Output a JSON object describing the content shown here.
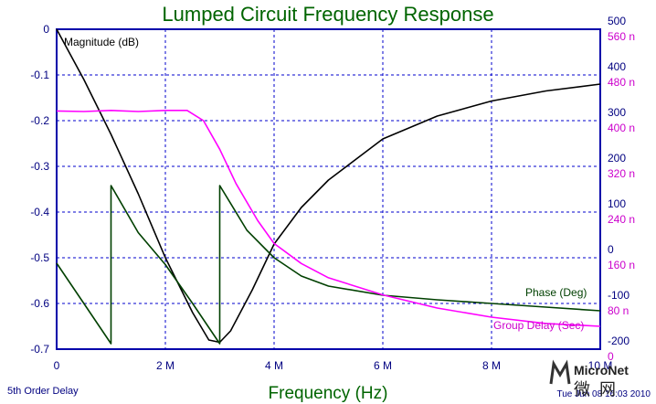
{
  "chart_data": {
    "type": "line",
    "title": "Lumped Circuit Frequency Response",
    "xlabel": "Frequency (Hz)",
    "footer_left": "5th Order Delay",
    "footer_right": "Tue Jun 08 16:03 2010",
    "watermark": {
      "brand": "MicroNet",
      "glyph": "微网"
    },
    "x_ticks": [
      "0",
      "2 M",
      "4 M",
      "6 M",
      "8 M",
      "10 M"
    ],
    "x_range": [
      0,
      10
    ],
    "left_axis": {
      "range": [
        -0.7,
        0
      ],
      "ticks": [
        "0",
        "-0.1",
        "-0.2",
        "-0.3",
        "-0.4",
        "-0.5",
        "-0.6",
        "-0.7"
      ]
    },
    "right_axis_phase": {
      "range": [
        -200,
        500
      ],
      "ticks": [
        "500",
        "400",
        "300",
        "200",
        "100",
        "0",
        "-100",
        "-200"
      ]
    },
    "right_axis_delay": {
      "range": [
        0,
        560
      ],
      "ticks": [
        "560 n",
        "480 n",
        "400 n",
        "320 n",
        "240 n",
        "160 n",
        "80 n",
        "0"
      ]
    },
    "grid": true,
    "colors": {
      "title": "#006400",
      "xlabel": "#006400",
      "axes_frame": "#0000aa",
      "grid": "#0000cc",
      "magnitude": "#000000",
      "phase": "#004000",
      "delay": "#ff00ff",
      "delay_tick": "#cc00cc"
    },
    "series": [
      {
        "name": "Magnitude (dB)",
        "axis": "left",
        "x": [
          0,
          0.5,
          1,
          1.5,
          2,
          2.5,
          2.8,
          3,
          3.2,
          3.6,
          4,
          4.5,
          5,
          6,
          7,
          8,
          9,
          10
        ],
        "y": [
          0,
          -0.11,
          -0.23,
          -0.36,
          -0.5,
          -0.62,
          -0.68,
          -0.685,
          -0.66,
          -0.57,
          -0.47,
          -0.39,
          -0.33,
          -0.24,
          -0.19,
          -0.157,
          -0.135,
          -0.12
        ]
      },
      {
        "name": "Phase (Deg)",
        "axis": "right_phase",
        "x": [
          0,
          0.5,
          1,
          1,
          1.5,
          2,
          2.5,
          3,
          3,
          3.5,
          4,
          4.5,
          5,
          6,
          7,
          8,
          9,
          10
        ],
        "y": [
          -12,
          -100,
          -188,
          158,
          55,
          -15,
          -100,
          -188,
          158,
          60,
          0,
          -40,
          -62,
          -82,
          -92,
          -100,
          -108,
          -116
        ]
      },
      {
        "name": "Group Delay (Sec)",
        "axis": "right_delay",
        "x": [
          0,
          0.5,
          1,
          1.5,
          2,
          2.4,
          2.7,
          3,
          3.3,
          3.7,
          4,
          4.5,
          5,
          6,
          7,
          8,
          9,
          10
        ],
        "y": [
          417,
          416,
          418,
          416,
          418,
          418,
          400,
          350,
          290,
          225,
          185,
          150,
          125,
          95,
          72,
          56,
          45,
          40
        ]
      }
    ]
  }
}
